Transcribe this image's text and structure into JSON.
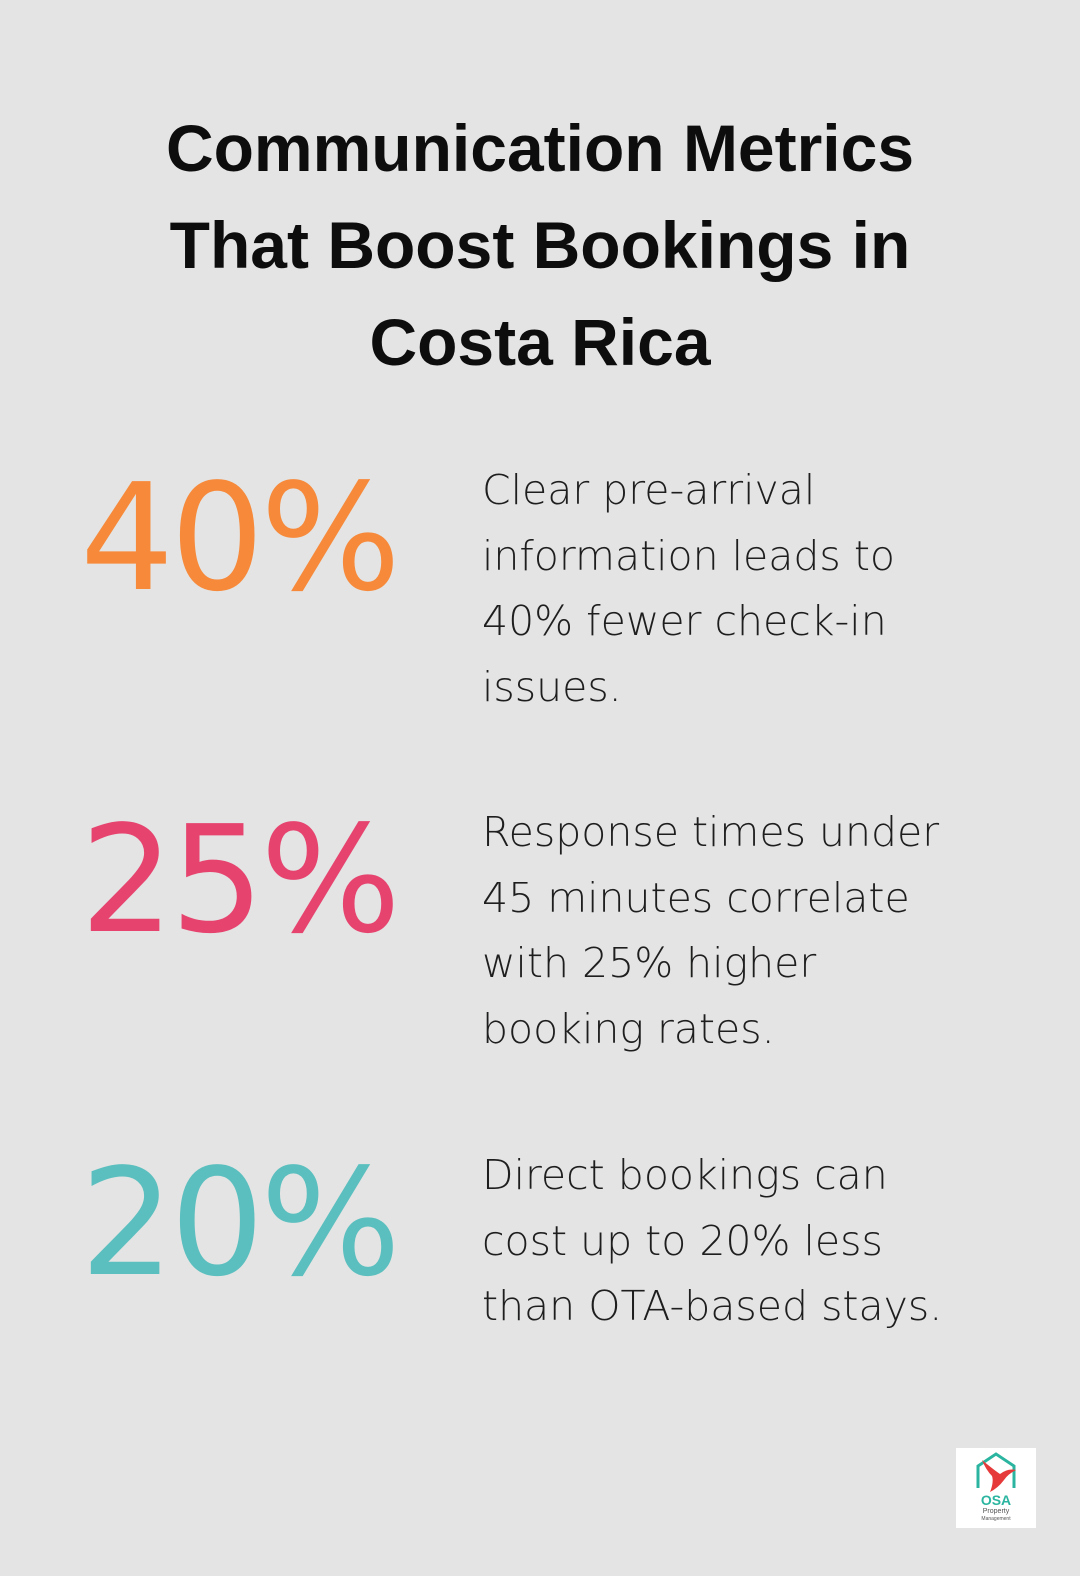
{
  "title_lines": [
    "Communication Metrics",
    "That Boost Bookings in",
    "Costa Rica"
  ],
  "items": [
    {
      "stat": "40%",
      "color": "#f7893a",
      "lines": [
        "Clear pre-arrival",
        "information leads to",
        "40% fewer check-in",
        "issues."
      ]
    },
    {
      "stat": "25%",
      "color": "#e6436f",
      "lines": [
        "Response times under",
        "45 minutes correlate",
        "with 25% higher",
        "booking rates."
      ]
    },
    {
      "stat": "20%",
      "color": "#5bbfbf",
      "lines": [
        "Direct bookings can",
        "cost up to 20% less",
        "than OTA-based stays."
      ]
    }
  ],
  "logo": {
    "name": "OSA",
    "line1": "Property",
    "line2": "Management"
  }
}
